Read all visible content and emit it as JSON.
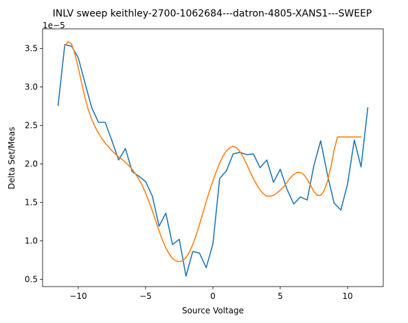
{
  "chart_data": {
    "type": "line",
    "title": "INLV sweep keithley-2700-1062684---datron-4805-XANS1---SWEEP",
    "xlabel": "Source Voltage",
    "ylabel": "Delta Set/Meas",
    "offset_label": "1e−5",
    "y_scale": 1e-05,
    "xlim": [
      -12.65,
      12.65
    ],
    "ylim": [
      4.05e-06,
      3.755e-05
    ],
    "x_ticks": [
      -10,
      -5,
      0,
      5,
      10
    ],
    "x_tick_labels": [
      "−10",
      "−5",
      "0",
      "5",
      "10"
    ],
    "y_ticks": [
      5e-06,
      1e-05,
      1.5e-05,
      2e-05,
      2.5e-05,
      3e-05,
      3.5e-05
    ],
    "y_tick_labels": [
      "0.5",
      "1.0",
      "1.5",
      "2.0",
      "2.5",
      "3.0",
      "3.5"
    ],
    "grid": false,
    "colors": {
      "measured": "#1f77b4",
      "fit": "#ff7f0e"
    },
    "series": [
      {
        "key": "measured",
        "x": [
          -11.5,
          -11.0,
          -10.5,
          -10.0,
          -9.5,
          -9.0,
          -8.5,
          -8.0,
          -7.5,
          -7.0,
          -6.5,
          -6.0,
          -5.5,
          -5.0,
          -4.5,
          -4.0,
          -3.5,
          -3.0,
          -2.5,
          -2.0,
          -1.5,
          -1.0,
          -0.5,
          0.0,
          0.5,
          1.0,
          1.5,
          2.0,
          2.5,
          3.0,
          3.5,
          4.0,
          4.5,
          5.0,
          5.5,
          6.0,
          6.5,
          7.0,
          7.5,
          8.0,
          8.5,
          9.0,
          9.5,
          10.0,
          10.5,
          11.0,
          11.5
        ],
        "values": [
          2.76e-05,
          3.55e-05,
          3.53e-05,
          3.38e-05,
          3.05e-05,
          2.73e-05,
          2.54e-05,
          2.54e-05,
          2.3e-05,
          2.05e-05,
          2.2e-05,
          1.9e-05,
          1.84e-05,
          1.77e-05,
          1.58e-05,
          1.19e-05,
          1.36e-05,
          9.5e-06,
          1.02e-05,
          5.4e-06,
          8.6e-06,
          8.4e-06,
          6.5e-06,
          9.6e-06,
          1.81e-05,
          1.91e-05,
          2.13e-05,
          2.15e-05,
          2.12e-05,
          2.13e-05,
          1.95e-05,
          2.05e-05,
          1.76e-05,
          1.93e-05,
          1.67e-05,
          1.48e-05,
          1.57e-05,
          1.53e-05,
          1.98e-05,
          2.3e-05,
          1.86e-05,
          1.49e-05,
          1.4e-05,
          1.74e-05,
          2.31e-05,
          1.96e-05,
          2.73e-05
        ]
      },
      {
        "key": "fit",
        "x": [
          -11.0,
          -10.75,
          -10.5,
          -10.25,
          -10.0,
          -9.75,
          -9.5,
          -9.25,
          -9.0,
          -8.75,
          -8.5,
          -8.25,
          -8.0,
          -7.75,
          -7.5,
          -7.25,
          -7.0,
          -6.75,
          -6.5,
          -6.25,
          -6.0,
          -5.75,
          -5.5,
          -5.25,
          -5.0,
          -4.75,
          -4.5,
          -4.25,
          -4.0,
          -3.75,
          -3.5,
          -3.25,
          -3.0,
          -2.75,
          -2.5,
          -2.25,
          -2.0,
          -1.75,
          -1.5,
          -1.25,
          -1.0,
          -0.75,
          -0.5,
          -0.25,
          0.0,
          0.25,
          0.5,
          0.75,
          1.0,
          1.25,
          1.5,
          1.75,
          2.0,
          2.25,
          2.5,
          2.75,
          3.0,
          3.25,
          3.5,
          3.75,
          4.0,
          4.25,
          4.5,
          4.75,
          5.0,
          5.25,
          5.5,
          5.75,
          6.0,
          6.25,
          6.5,
          6.75,
          7.0,
          7.25,
          7.5,
          7.75,
          8.0,
          8.25,
          8.5,
          8.75,
          9.0,
          9.25,
          9.5,
          9.75,
          10.0,
          10.25,
          10.5,
          10.75,
          11.0
        ],
        "values": [
          3.53e-05,
          3.59e-05,
          3.56e-05,
          3.43e-05,
          3.25e-05,
          3.05e-05,
          2.86e-05,
          2.7e-05,
          2.58e-05,
          2.48e-05,
          2.4e-05,
          2.33e-05,
          2.27e-05,
          2.22e-05,
          2.17e-05,
          2.13e-05,
          2.09e-05,
          2.06e-05,
          2.02e-05,
          1.98e-05,
          1.93e-05,
          1.87e-05,
          1.8e-05,
          1.72e-05,
          1.62e-05,
          1.51e-05,
          1.39e-05,
          1.26e-05,
          1.13e-05,
          1.01e-05,
          9.1e-06,
          8.3e-06,
          7.7e-06,
          7.4e-06,
          7.3e-06,
          7.4e-06,
          7.8e-06,
          8.5e-06,
          9.5e-06,
          1.07e-05,
          1.21e-05,
          1.36e-05,
          1.51e-05,
          1.65e-05,
          1.78e-05,
          1.9e-05,
          2.01e-05,
          2.1e-05,
          2.17e-05,
          2.21e-05,
          2.23e-05,
          2.21e-05,
          2.16e-05,
          2.09e-05,
          2e-05,
          1.9e-05,
          1.81e-05,
          1.73e-05,
          1.66e-05,
          1.61e-05,
          1.58e-05,
          1.58e-05,
          1.59e-05,
          1.62e-05,
          1.66e-05,
          1.7e-05,
          1.76e-05,
          1.82e-05,
          1.86e-05,
          1.89e-05,
          1.89e-05,
          1.86e-05,
          1.8e-05,
          1.72e-05,
          1.64e-05,
          1.59e-05,
          1.59e-05,
          1.65e-05,
          1.77e-05,
          1.95e-05,
          2.18e-05,
          2.35e-05,
          2.35e-05,
          2.35e-05,
          2.35e-05,
          2.35e-05,
          2.35e-05,
          2.35e-05,
          2.35e-05
        ]
      }
    ]
  }
}
